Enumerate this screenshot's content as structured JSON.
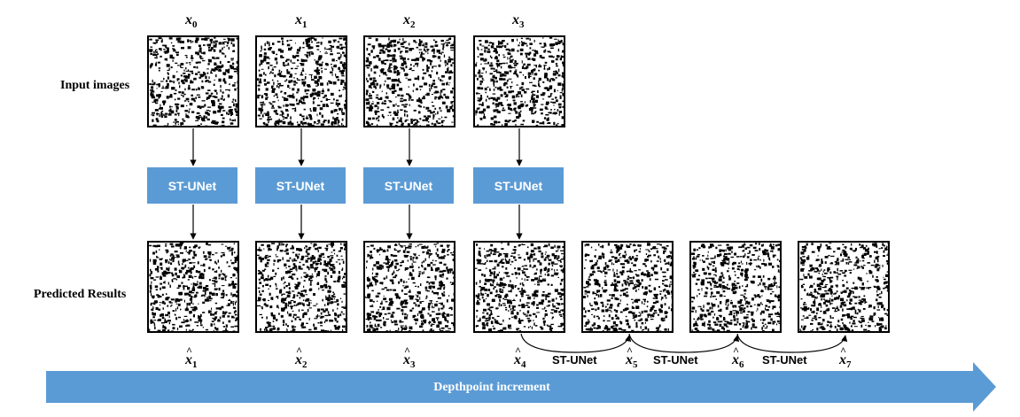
{
  "row_labels": {
    "input": "Input images",
    "predicted": "Predicted Results"
  },
  "input_names": [
    {
      "base": "x",
      "sub": "0"
    },
    {
      "base": "x",
      "sub": "1"
    },
    {
      "base": "x",
      "sub": "2"
    },
    {
      "base": "x",
      "sub": "3"
    }
  ],
  "output_names": [
    {
      "base": "x",
      "sub": "1"
    },
    {
      "base": "x",
      "sub": "2"
    },
    {
      "base": "x",
      "sub": "3"
    },
    {
      "base": "x",
      "sub": "4"
    },
    {
      "base": "x",
      "sub": "5"
    },
    {
      "base": "x",
      "sub": "6"
    },
    {
      "base": "x",
      "sub": "7"
    }
  ],
  "model_label": "ST-UNet",
  "axis_label": "Depthpoint increment",
  "colors": {
    "block": "#5b9bd5",
    "arrow": "#5b9bd5",
    "ink": "#000000"
  }
}
